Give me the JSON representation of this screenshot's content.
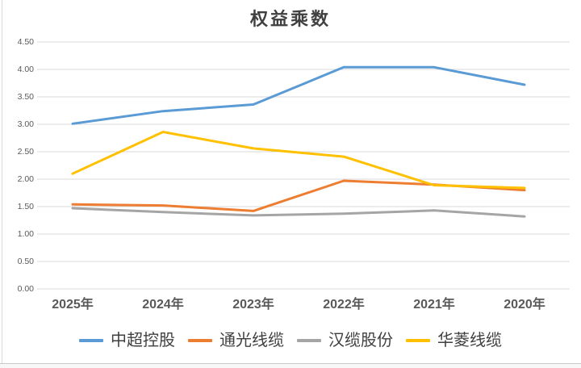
{
  "chart_data": {
    "type": "line",
    "title": "权益乘数",
    "categories": [
      "2025年",
      "2024年",
      "2023年",
      "2022年",
      "2021年",
      "2020年"
    ],
    "series": [
      {
        "name": "中超控股",
        "color": "#5B9BD5",
        "values": [
          3.01,
          3.24,
          3.36,
          4.04,
          4.04,
          3.72
        ]
      },
      {
        "name": "通光线缆",
        "color": "#ED7D31",
        "values": [
          1.54,
          1.52,
          1.42,
          1.97,
          1.9,
          1.8
        ]
      },
      {
        "name": "汉缆股份",
        "color": "#A5A5A5",
        "values": [
          1.47,
          1.4,
          1.34,
          1.37,
          1.43,
          1.32
        ]
      },
      {
        "name": "华菱线缆",
        "color": "#FFC000",
        "values": [
          2.1,
          2.86,
          2.56,
          2.41,
          1.89,
          1.84
        ]
      }
    ],
    "ylim": [
      0,
      4.5
    ],
    "ytick_step": 0.5,
    "ytick_labels": [
      "0.00",
      "0.50",
      "1.00",
      "1.50",
      "2.00",
      "2.50",
      "3.00",
      "3.50",
      "4.00",
      "4.50"
    ],
    "grid": true,
    "gridline_color": "#D9D9D9",
    "axis_label_color": "#595959",
    "legend_position": "bottom"
  }
}
